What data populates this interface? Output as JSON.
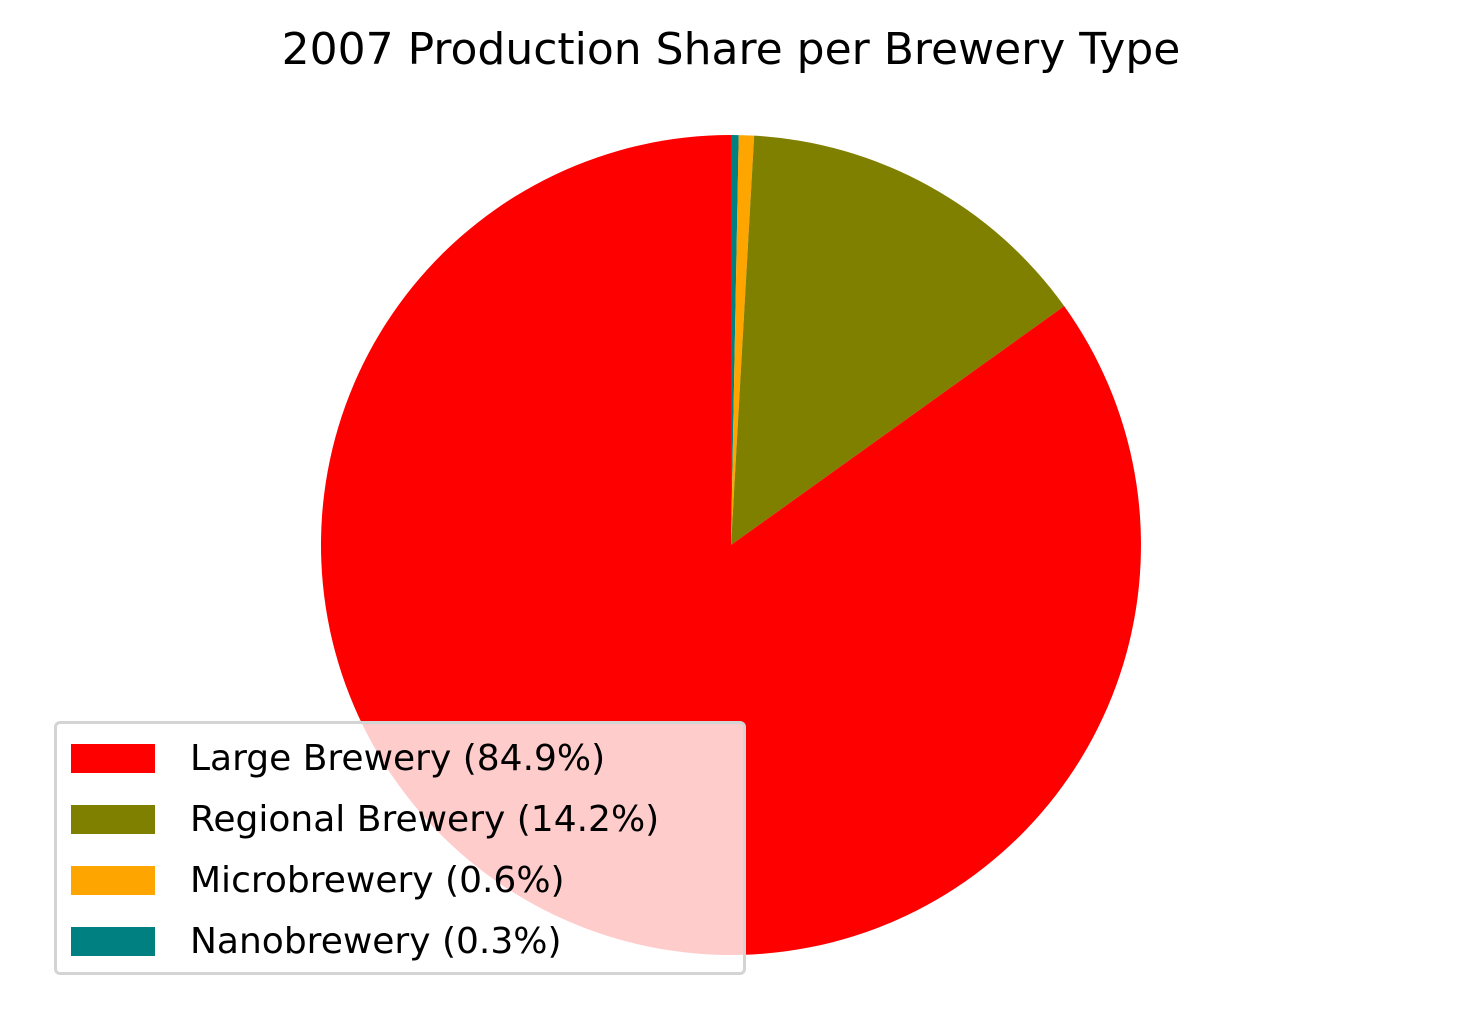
{
  "chart_data": {
    "type": "pie",
    "title": "2007 Production Share per Brewery Type",
    "categories": [
      "Large Brewery",
      "Regional Brewery",
      "Microbrewery",
      "Nanobrewery"
    ],
    "values": [
      84.9,
      14.2,
      0.6,
      0.3
    ],
    "colors": [
      "#ff0000",
      "#808000",
      "#ffa500",
      "#008080"
    ],
    "legend": {
      "placement": "lower-left",
      "entries": [
        "Large Brewery (84.9%)",
        "Regional Brewery (14.2%)",
        "Microbrewery (0.6%)",
        "Nanobrewery (0.3%)"
      ]
    }
  }
}
